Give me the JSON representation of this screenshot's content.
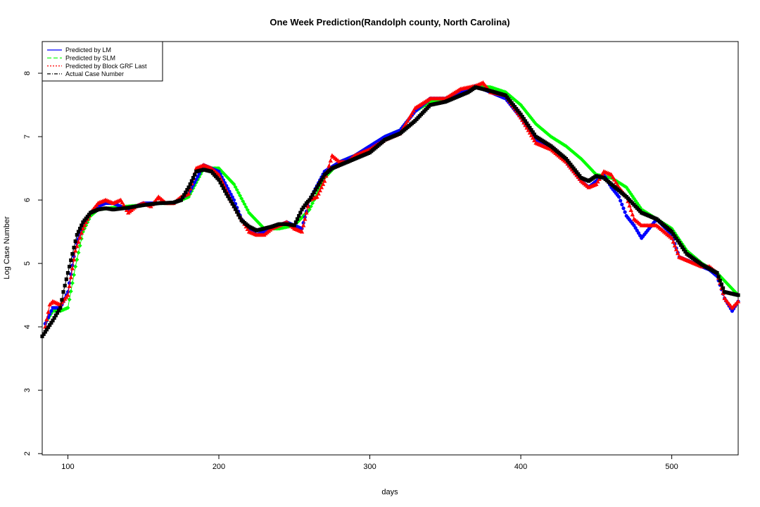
{
  "chart_data": {
    "type": "scatter",
    "title": "One Week Prediction(Randolph county, North Carolina)",
    "xlabel": "days",
    "ylabel": "Log Case Number",
    "xlim": [
      83,
      544
    ],
    "ylim": [
      1.98,
      8.5
    ],
    "x_ticks": [
      100,
      200,
      300,
      400,
      500
    ],
    "y_ticks": [
      2,
      3,
      4,
      5,
      6,
      7,
      8
    ],
    "grid": false,
    "legend_position": "top-left",
    "series": [
      {
        "name": "Predicted by LM",
        "color": "#0000ff",
        "marker": "circle",
        "x": [
          85,
          90,
          95,
          100,
          105,
          110,
          115,
          120,
          125,
          130,
          140,
          150,
          160,
          170,
          180,
          190,
          200,
          210,
          215,
          220,
          225,
          230,
          235,
          240,
          245,
          250,
          255,
          260,
          270,
          280,
          290,
          300,
          310,
          320,
          330,
          340,
          350,
          360,
          370,
          380,
          390,
          400,
          410,
          420,
          430,
          440,
          445,
          450,
          455,
          460,
          465,
          470,
          475,
          480,
          490,
          500,
          505,
          510,
          520,
          525,
          530,
          535,
          540,
          544
        ],
        "values": [
          4.05,
          4.3,
          4.3,
          4.55,
          5.25,
          5.6,
          5.8,
          5.9,
          5.95,
          5.95,
          5.85,
          5.95,
          5.95,
          5.95,
          6.1,
          6.55,
          6.45,
          6.0,
          5.7,
          5.55,
          5.45,
          5.5,
          5.55,
          5.6,
          5.65,
          5.6,
          5.55,
          6.0,
          6.45,
          6.6,
          6.7,
          6.85,
          7.0,
          7.1,
          7.4,
          7.6,
          7.6,
          7.7,
          7.8,
          7.7,
          7.6,
          7.3,
          6.95,
          6.85,
          6.6,
          6.3,
          6.2,
          6.3,
          6.4,
          6.2,
          6.05,
          5.75,
          5.6,
          5.4,
          5.7,
          5.45,
          5.1,
          5.05,
          4.95,
          4.9,
          4.8,
          4.45,
          4.25,
          4.4
        ]
      },
      {
        "name": "Predicted by SLM",
        "color": "#00ff00",
        "marker": "diamond",
        "x": [
          85,
          90,
          95,
          100,
          105,
          110,
          115,
          120,
          130,
          140,
          150,
          160,
          170,
          180,
          190,
          200,
          210,
          220,
          230,
          240,
          250,
          260,
          270,
          280,
          290,
          300,
          310,
          320,
          330,
          340,
          350,
          360,
          370,
          380,
          390,
          400,
          410,
          420,
          430,
          440,
          450,
          460,
          470,
          480,
          490,
          500,
          510,
          520,
          530,
          544
        ],
        "values": [
          4.05,
          4.25,
          4.25,
          4.3,
          4.95,
          5.5,
          5.75,
          5.85,
          5.88,
          5.9,
          5.92,
          5.95,
          5.95,
          6.05,
          6.5,
          6.5,
          6.25,
          5.8,
          5.55,
          5.55,
          5.6,
          5.85,
          6.35,
          6.6,
          6.7,
          6.85,
          7.0,
          7.1,
          7.4,
          7.55,
          7.6,
          7.7,
          7.8,
          7.78,
          7.7,
          7.5,
          7.2,
          7.0,
          6.85,
          6.65,
          6.4,
          6.35,
          6.2,
          5.85,
          5.7,
          5.55,
          5.2,
          5.0,
          4.85,
          4.5
        ]
      },
      {
        "name": "Predicted by Block GRF Last",
        "color": "#ff0000",
        "marker": "triangle",
        "x": [
          85,
          88,
          90,
          95,
          100,
          105,
          110,
          115,
          120,
          125,
          130,
          135,
          140,
          145,
          150,
          155,
          160,
          165,
          170,
          175,
          180,
          185,
          190,
          195,
          200,
          205,
          210,
          215,
          220,
          225,
          230,
          235,
          240,
          245,
          250,
          255,
          260,
          265,
          270,
          275,
          280,
          285,
          290,
          300,
          310,
          320,
          330,
          340,
          350,
          360,
          370,
          375,
          380,
          390,
          400,
          410,
          420,
          430,
          440,
          445,
          450,
          455,
          460,
          465,
          470,
          475,
          480,
          490,
          500,
          505,
          510,
          520,
          525,
          530,
          535,
          540,
          544
        ],
        "values": [
          4.0,
          4.35,
          4.4,
          4.35,
          4.5,
          5.2,
          5.55,
          5.8,
          5.95,
          6.0,
          5.95,
          6.0,
          5.8,
          5.9,
          5.95,
          5.9,
          6.05,
          5.95,
          5.95,
          6.05,
          6.1,
          6.5,
          6.55,
          6.5,
          6.4,
          6.15,
          5.9,
          5.7,
          5.5,
          5.45,
          5.45,
          5.55,
          5.6,
          5.65,
          5.55,
          5.5,
          6.0,
          6.05,
          6.3,
          6.7,
          6.6,
          6.6,
          6.7,
          6.8,
          6.95,
          7.05,
          7.45,
          7.6,
          7.6,
          7.75,
          7.8,
          7.85,
          7.7,
          7.65,
          7.3,
          6.9,
          6.8,
          6.6,
          6.3,
          6.2,
          6.25,
          6.45,
          6.4,
          6.2,
          6.05,
          5.7,
          5.6,
          5.6,
          5.4,
          5.1,
          5.05,
          4.95,
          4.95,
          4.85,
          4.45,
          4.3,
          4.4
        ]
      },
      {
        "name": "Actual Case Number",
        "color": "#000000",
        "marker": "square",
        "x": [
          83,
          90,
          95,
          97,
          100,
          103,
          106,
          110,
          115,
          120,
          125,
          130,
          140,
          150,
          160,
          170,
          175,
          180,
          185,
          190,
          195,
          200,
          205,
          210,
          215,
          220,
          225,
          230,
          235,
          240,
          245,
          250,
          255,
          258,
          260,
          265,
          270,
          275,
          280,
          290,
          300,
          310,
          320,
          330,
          340,
          350,
          360,
          365,
          370,
          375,
          380,
          390,
          400,
          410,
          420,
          430,
          440,
          445,
          450,
          455,
          460,
          470,
          480,
          490,
          500,
          510,
          520,
          530,
          535,
          544
        ],
        "values": [
          3.85,
          4.1,
          4.3,
          4.55,
          4.85,
          5.15,
          5.45,
          5.65,
          5.8,
          5.85,
          5.87,
          5.85,
          5.88,
          5.92,
          5.95,
          5.96,
          6.0,
          6.2,
          6.45,
          6.48,
          6.45,
          6.32,
          6.1,
          5.9,
          5.68,
          5.58,
          5.52,
          5.55,
          5.58,
          5.62,
          5.62,
          5.6,
          5.85,
          5.95,
          6.0,
          6.2,
          6.4,
          6.5,
          6.55,
          6.65,
          6.75,
          6.95,
          7.05,
          7.25,
          7.5,
          7.55,
          7.65,
          7.7,
          7.78,
          7.75,
          7.72,
          7.65,
          7.35,
          7.0,
          6.85,
          6.65,
          6.35,
          6.3,
          6.38,
          6.35,
          6.25,
          6.05,
          5.8,
          5.7,
          5.5,
          5.15,
          4.98,
          4.85,
          4.55,
          4.5
        ]
      }
    ]
  }
}
